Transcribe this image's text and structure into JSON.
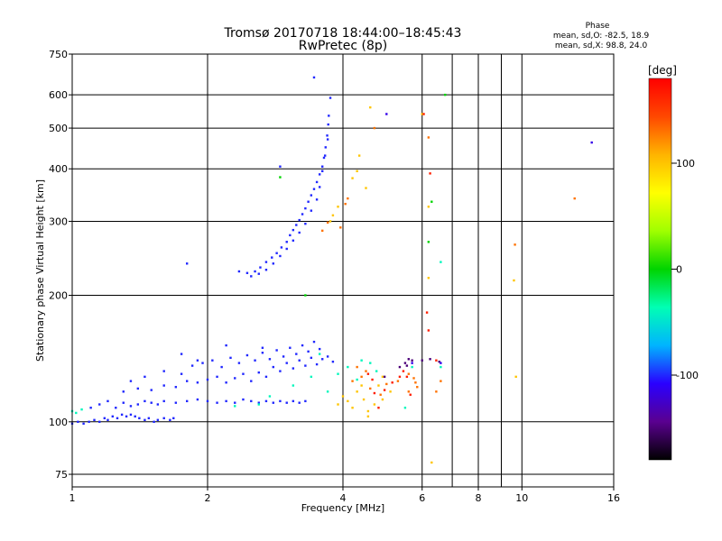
{
  "chart_data": [
    {
      "type": "scatter",
      "title": "Tromsø 20170718 18:44:00–18:45:43",
      "subtitle": "RwPretec (8p)",
      "xlabel": "Frequency [MHz]",
      "ylabel": "Stationary phase Virtual Height [km]",
      "x_scale": "log",
      "y_scale": "log",
      "xlim": [
        1,
        16
      ],
      "ylim": [
        70,
        750
      ],
      "x_ticks": [
        1,
        2,
        4,
        6,
        8,
        10,
        16
      ],
      "x_tick_labels": [
        "1",
        "2",
        "4",
        "6",
        "8",
        "10",
        "16"
      ],
      "x_minor_ticks": [
        7,
        9
      ],
      "y_ticks": [
        75,
        100,
        200,
        300,
        400,
        500,
        600,
        750
      ],
      "y_tick_labels": [
        "75",
        "100",
        "200",
        "300",
        "400",
        "500",
        "600",
        "750"
      ],
      "grid": true,
      "phase_legend": {
        "heading": "Phase",
        "line1": "mean, sd,O: -82.5, 18.9",
        "line2": "mean, sd,X:  98.8, 24.0"
      },
      "series": [
        {
          "points": [
            [
              1.0,
              99
            ],
            [
              1.03,
              100
            ],
            [
              1.06,
              99
            ],
            [
              1.09,
              100
            ],
            [
              1.12,
              101
            ],
            [
              1.15,
              100
            ],
            [
              1.18,
              102
            ],
            [
              1.2,
              101
            ],
            [
              1.23,
              103
            ],
            [
              1.26,
              102
            ],
            [
              1.29,
              104
            ],
            [
              1.32,
              103
            ],
            [
              1.35,
              104
            ],
            [
              1.38,
              103
            ],
            [
              1.41,
              102
            ],
            [
              1.45,
              101
            ],
            [
              1.48,
              102
            ],
            [
              1.52,
              100
            ],
            [
              1.55,
              101
            ],
            [
              1.6,
              102
            ],
            [
              1.65,
              101
            ],
            [
              1.68,
              102
            ],
            [
              1.1,
              108
            ],
            [
              1.15,
              110
            ],
            [
              1.2,
              112
            ],
            [
              1.25,
              108
            ],
            [
              1.3,
              111
            ],
            [
              1.35,
              109
            ],
            [
              1.4,
              110
            ],
            [
              1.45,
              112
            ],
            [
              1.5,
              111
            ],
            [
              1.55,
              110
            ],
            [
              1.6,
              112
            ],
            [
              1.7,
              111
            ],
            [
              1.8,
              112
            ],
            [
              1.9,
              113
            ],
            [
              2.0,
              112
            ],
            [
              2.1,
              111
            ],
            [
              2.2,
              112
            ],
            [
              2.3,
              111
            ],
            [
              2.4,
              113
            ],
            [
              2.5,
              112
            ],
            [
              2.6,
              111
            ],
            [
              2.7,
              112
            ],
            [
              2.8,
              111
            ],
            [
              2.9,
              112
            ],
            [
              3.0,
              111
            ],
            [
              3.1,
              112
            ],
            [
              3.2,
              111
            ],
            [
              3.3,
              112
            ],
            [
              1.3,
              118
            ],
            [
              1.4,
              120
            ],
            [
              1.5,
              119
            ],
            [
              1.6,
              122
            ],
            [
              1.7,
              121
            ],
            [
              1.8,
              125
            ],
            [
              1.9,
              124
            ],
            [
              2.0,
              126
            ],
            [
              2.1,
              128
            ],
            [
              2.2,
              124
            ],
            [
              2.3,
              127
            ],
            [
              2.4,
              130
            ],
            [
              2.5,
              125
            ],
            [
              2.6,
              131
            ],
            [
              2.7,
              128
            ],
            [
              2.8,
              135
            ],
            [
              2.9,
              132
            ],
            [
              3.0,
              138
            ],
            [
              3.1,
              134
            ],
            [
              3.2,
              140
            ],
            [
              3.3,
              136
            ],
            [
              3.4,
              142
            ],
            [
              3.5,
              137
            ],
            [
              3.6,
              141
            ],
            [
              3.7,
              143
            ],
            [
              3.8,
              139
            ],
            [
              1.35,
              125
            ],
            [
              1.45,
              128
            ],
            [
              1.6,
              132
            ],
            [
              1.75,
              130
            ],
            [
              1.85,
              136
            ],
            [
              1.95,
              138
            ],
            [
              2.05,
              140
            ],
            [
              2.15,
              135
            ],
            [
              2.25,
              142
            ],
            [
              2.35,
              138
            ],
            [
              2.45,
              144
            ],
            [
              2.55,
              140
            ],
            [
              2.65,
              146
            ],
            [
              2.75,
              141
            ],
            [
              2.85,
              148
            ],
            [
              2.95,
              143
            ],
            [
              3.05,
              150
            ],
            [
              3.15,
              145
            ],
            [
              3.25,
              152
            ],
            [
              3.35,
              147
            ],
            [
              3.45,
              155
            ],
            [
              3.55,
              149
            ],
            [
              2.35,
              228
            ],
            [
              2.45,
              226
            ],
            [
              2.55,
              228
            ],
            [
              2.62,
              233
            ],
            [
              2.7,
              240
            ],
            [
              2.78,
              246
            ],
            [
              2.85,
              252
            ],
            [
              2.92,
              260
            ],
            [
              3.0,
              268
            ],
            [
              3.05,
              278
            ],
            [
              3.1,
              286
            ],
            [
              3.15,
              294
            ],
            [
              3.2,
              302
            ],
            [
              3.25,
              312
            ],
            [
              3.3,
              322
            ],
            [
              3.35,
              334
            ],
            [
              3.4,
              346
            ],
            [
              3.45,
              358
            ],
            [
              3.5,
              372
            ],
            [
              3.55,
              388
            ],
            [
              3.6,
              405
            ],
            [
              3.63,
              425
            ],
            [
              3.66,
              450
            ],
            [
              3.69,
              480
            ],
            [
              3.71,
              510
            ],
            [
              3.72,
              535
            ],
            [
              2.5,
              222
            ],
            [
              2.6,
              225
            ],
            [
              2.7,
              230
            ],
            [
              2.8,
              238
            ],
            [
              2.9,
              248
            ],
            [
              3.0,
              258
            ],
            [
              3.1,
              270
            ],
            [
              3.2,
              282
            ],
            [
              3.3,
              296
            ],
            [
              3.4,
              318
            ],
            [
              3.5,
              338
            ],
            [
              3.55,
              362
            ],
            [
              3.6,
              395
            ],
            [
              3.65,
              430
            ],
            [
              3.7,
              470
            ],
            [
              3.75,
              590
            ],
            [
              1.8,
              238
            ],
            [
              2.9,
              405
            ],
            [
              3.45,
              660
            ],
            [
              1.75,
              145
            ],
            [
              1.9,
              140
            ],
            [
              2.2,
              152
            ],
            [
              2.65,
              150
            ]
          ],
          "phase": -100
        },
        {
          "points": [
            [
              1.0,
              106
            ],
            [
              1.02,
              105
            ],
            [
              1.05,
              107
            ],
            [
              2.3,
              109
            ],
            [
              2.6,
              110
            ],
            [
              2.75,
              115
            ],
            [
              3.1,
              122
            ],
            [
              3.4,
              128
            ],
            [
              3.9,
              130
            ],
            [
              4.1,
              135
            ],
            [
              4.4,
              140
            ],
            [
              4.6,
              138
            ],
            [
              4.75,
              132
            ],
            [
              4.3,
              126
            ],
            [
              3.7,
              118
            ],
            [
              3.55,
              145
            ],
            [
              5.5,
              108
            ],
            [
              5.7,
              135
            ],
            [
              6.6,
              240
            ],
            [
              6.6,
              135
            ]
          ],
          "phase": -40
        },
        {
          "points": [
            [
              2.9,
              382
            ],
            [
              3.3,
              200
            ],
            [
              6.2,
              268
            ],
            [
              6.3,
              334
            ],
            [
              6.75,
              600
            ]
          ],
          "phase": 0
        },
        {
          "points": [
            [
              3.75,
              300
            ],
            [
              3.8,
              310
            ],
            [
              3.9,
              325
            ],
            [
              4.2,
              380
            ],
            [
              4.3,
              395
            ],
            [
              4.35,
              430
            ],
            [
              4.5,
              360
            ],
            [
              4.6,
              560
            ],
            [
              3.9,
              110
            ],
            [
              4.0,
              115
            ],
            [
              4.1,
              112
            ],
            [
              4.2,
              108
            ],
            [
              4.3,
              118
            ],
            [
              4.45,
              113
            ],
            [
              4.55,
              106
            ],
            [
              4.7,
              110
            ],
            [
              4.8,
              122
            ],
            [
              4.9,
              128
            ],
            [
              6.0,
              540
            ],
            [
              9.6,
              217
            ],
            [
              9.7,
              128
            ],
            [
              6.2,
              220
            ],
            [
              6.3,
              80
            ],
            [
              6.2,
              325
            ],
            [
              4.55,
              103
            ],
            [
              4.9,
              113
            ],
            [
              5.1,
              118
            ],
            [
              4.4,
              122
            ]
          ],
          "phase": 100
        },
        {
          "points": [
            [
              3.6,
              285
            ],
            [
              3.7,
              298
            ],
            [
              3.95,
              290
            ],
            [
              4.05,
              330
            ],
            [
              4.1,
              340
            ],
            [
              4.7,
              500
            ],
            [
              4.2,
              125
            ],
            [
              4.4,
              128
            ],
            [
              4.6,
              120
            ],
            [
              4.85,
              116
            ],
            [
              5.0,
              123
            ],
            [
              5.3,
              125
            ],
            [
              5.6,
              130
            ],
            [
              5.8,
              124
            ],
            [
              5.85,
              121
            ],
            [
              5.6,
              118
            ],
            [
              5.75,
              127
            ],
            [
              4.3,
              135
            ],
            [
              4.5,
              132
            ],
            [
              6.2,
              475
            ],
            [
              9.65,
              264
            ],
            [
              13.1,
              340
            ],
            [
              6.45,
              118
            ],
            [
              6.6,
              125
            ]
          ],
          "phase": 130
        },
        {
          "points": [
            [
              4.55,
              130
            ],
            [
              4.65,
              126
            ],
            [
              4.95,
              119
            ],
            [
              5.15,
              124
            ],
            [
              5.35,
              128
            ],
            [
              5.55,
              128
            ],
            [
              4.7,
              117
            ],
            [
              6.25,
              390
            ],
            [
              6.05,
              540
            ],
            [
              5.65,
              116
            ],
            [
              6.45,
              140
            ],
            [
              5.45,
              132
            ],
            [
              6.2,
              165
            ],
            [
              6.15,
              182
            ],
            [
              4.8,
              108
            ]
          ],
          "phase": 165
        },
        {
          "points": [
            [
              5.5,
              138
            ],
            [
              5.6,
              141
            ],
            [
              5.55,
              136
            ],
            [
              5.7,
              140
            ],
            [
              6.0,
              140
            ],
            [
              6.25,
              141
            ],
            [
              6.55,
              139
            ],
            [
              5.35,
              135
            ],
            [
              4.95,
              128
            ]
          ],
          "phase": -150
        },
        {
          "points": [
            [
              14.3,
              462
            ],
            [
              5.0,
              540
            ],
            [
              5.7,
              138
            ],
            [
              6.6,
              138
            ]
          ],
          "phase": -115
        }
      ]
    }
  ],
  "colorbar": {
    "unit_label": "[deg]",
    "range": [
      -180,
      180
    ],
    "ticks": [
      100,
      0,
      -100
    ],
    "tick_labels": [
      "100",
      "0",
      "-100"
    ],
    "colors": [
      "#000000",
      "#5a0090",
      "#2a00ff",
      "#00b4ff",
      "#00ffb4",
      "#00d400",
      "#a0ff00",
      "#ffff00",
      "#ffb400",
      "#ff4800",
      "#ff0000"
    ]
  }
}
